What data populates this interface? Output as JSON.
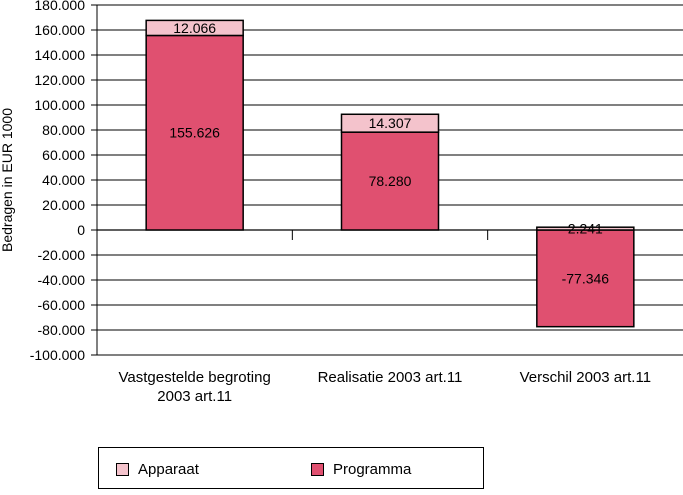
{
  "chart_data": {
    "type": "bar",
    "stacked": true,
    "ylabel": "Bedragen in EUR 1000",
    "ylim": [
      -100000,
      180000
    ],
    "ytick_step": 20000,
    "ytick_labels": [
      "180.000",
      "160.000",
      "140.000",
      "120.000",
      "100.000",
      "80.000",
      "60.000",
      "40.000",
      "20.000",
      "0",
      "-20.000",
      "-40.000",
      "-60.000",
      "-80.000",
      "-100.000"
    ],
    "grid": true,
    "legend_position": "bottom",
    "categories": [
      [
        "Vastgestelde begroting",
        "2003 art.11"
      ],
      [
        "Realisatie 2003 art.11"
      ],
      [
        "Verschil 2003 art.11"
      ]
    ],
    "series": [
      {
        "name": "Programma",
        "color": "#e05070",
        "values": [
          155626,
          78280,
          -77346
        ],
        "labels": [
          "155.626",
          "78.280",
          "-77.346"
        ]
      },
      {
        "name": "Apparaat",
        "color": "#f4c3cc",
        "values": [
          12066,
          14307,
          2241
        ],
        "labels": [
          "12.066",
          "14.307",
          "2.241"
        ]
      }
    ]
  },
  "legend": {
    "apparaat": "Apparaat",
    "programma": "Programma"
  }
}
